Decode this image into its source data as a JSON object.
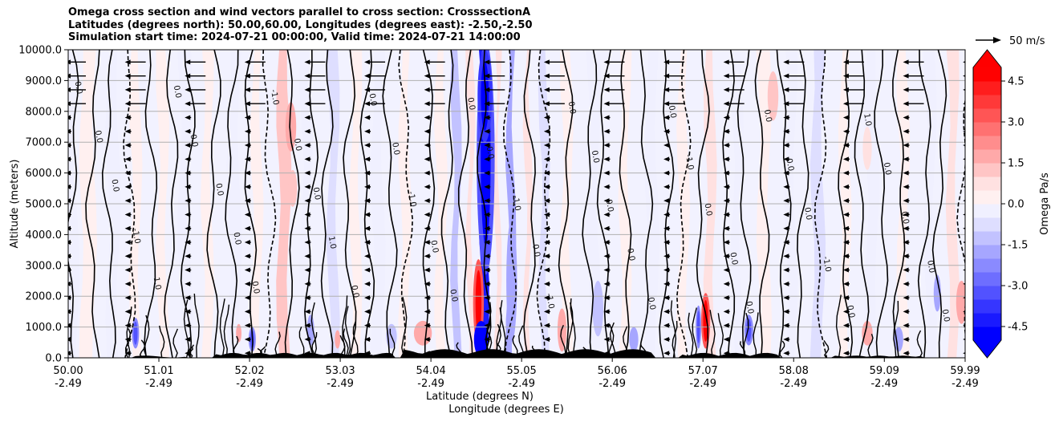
{
  "chart_data": {
    "type": "heatmap",
    "title_lines": [
      "Omega cross section and wind vectors parallel to cross section: CrosssectionA",
      "Latitudes (degrees north): 50.00,60.00, Longitudes (degrees east): -2.50,-2.50",
      "Simulation start time: 2024-07-21 00:00:00, Valid time: 2024-07-21 14:00:00"
    ],
    "ylabel": "Altitude (meters)",
    "xlabel_line1": "Latitude (degrees N)",
    "xlabel_line2": "Longitude (degrees E)",
    "xlim": [
      50.0,
      59.99
    ],
    "ylim": [
      0,
      10000
    ],
    "x_ticks": [
      {
        "lat": "50.00",
        "lon": "-2.49"
      },
      {
        "lat": "51.01",
        "lon": "-2.49"
      },
      {
        "lat": "52.02",
        "lon": "-2.49"
      },
      {
        "lat": "53.03",
        "lon": "-2.49"
      },
      {
        "lat": "54.04",
        "lon": "-2.49"
      },
      {
        "lat": "55.05",
        "lon": "-2.49"
      },
      {
        "lat": "56.06",
        "lon": "-2.49"
      },
      {
        "lat": "57.07",
        "lon": "-2.49"
      },
      {
        "lat": "58.08",
        "lon": "-2.49"
      },
      {
        "lat": "59.09",
        "lon": "-2.49"
      },
      {
        "lat": "59.99",
        "lon": "-2.49"
      }
    ],
    "y_ticks": [
      "0.0",
      "1000.0",
      "2000.0",
      "3000.0",
      "4000.0",
      "5000.0",
      "6000.0",
      "7000.0",
      "8000.0",
      "9000.0",
      "10000.0"
    ],
    "grid": true,
    "colorbar": {
      "label": "Omega Pa/s",
      "range": [
        -5,
        5
      ],
      "extend": "both",
      "ticks": [
        "-4.5",
        "-3.0",
        "-1.5",
        "0.0",
        "1.5",
        "3.0",
        "4.5"
      ],
      "negative_color": "#0000ff",
      "positive_color": "#ff0000"
    },
    "quiver_key": {
      "label": "50 m/s"
    },
    "contour_label": "0.0",
    "contour_label_neg": "-1.0",
    "contour_label_pos": "1.0",
    "wind_vector_direction": "southward",
    "wind_strong_band_altitude": [
      8000,
      10000
    ],
    "bands": [
      {
        "x": 50.05,
        "w": 0.1,
        "v": -0.4
      },
      {
        "x": 50.22,
        "w": 0.15,
        "v": 0.5
      },
      {
        "x": 50.5,
        "w": 0.12,
        "v": -0.3
      },
      {
        "x": 50.75,
        "w": 0.1,
        "v": 0.4
      },
      {
        "x": 51.05,
        "w": 0.1,
        "v": 0.3
      },
      {
        "x": 51.3,
        "w": 0.12,
        "v": -0.5
      },
      {
        "x": 51.55,
        "w": 0.1,
        "v": 0.4
      },
      {
        "x": 51.85,
        "w": 0.12,
        "v": -0.4
      },
      {
        "x": 52.1,
        "w": 0.1,
        "v": 0.3
      },
      {
        "x": 52.4,
        "w": 0.12,
        "v": 1.2
      },
      {
        "x": 52.65,
        "w": 0.1,
        "v": -0.3
      },
      {
        "x": 52.95,
        "w": 0.1,
        "v": -0.6
      },
      {
        "x": 53.2,
        "w": 0.1,
        "v": 0.4
      },
      {
        "x": 53.45,
        "w": 0.12,
        "v": -0.5
      },
      {
        "x": 53.75,
        "w": 0.1,
        "v": 0.5
      },
      {
        "x": 54.15,
        "w": 0.1,
        "v": 0.4
      },
      {
        "x": 54.32,
        "w": 0.08,
        "v": -1.2
      },
      {
        "x": 54.48,
        "w": 0.06,
        "v": 0.8
      },
      {
        "x": 54.63,
        "w": 0.07,
        "v": -4.5
      },
      {
        "x": 54.78,
        "w": 0.05,
        "v": 1.0
      },
      {
        "x": 54.93,
        "w": 0.07,
        "v": -2.0
      },
      {
        "x": 55.12,
        "w": 0.06,
        "v": 1.0
      },
      {
        "x": 55.3,
        "w": 0.08,
        "v": -0.8
      },
      {
        "x": 55.55,
        "w": 0.1,
        "v": 0.5
      },
      {
        "x": 55.85,
        "w": 0.12,
        "v": -0.3
      },
      {
        "x": 56.2,
        "w": 0.1,
        "v": 0.4
      },
      {
        "x": 56.5,
        "w": 0.12,
        "v": -0.5
      },
      {
        "x": 56.85,
        "w": 0.1,
        "v": 0.4
      },
      {
        "x": 57.15,
        "w": 0.1,
        "v": 0.6
      },
      {
        "x": 57.45,
        "w": 0.1,
        "v": -0.4
      },
      {
        "x": 57.75,
        "w": 0.12,
        "v": 0.5
      },
      {
        "x": 58.05,
        "w": 0.1,
        "v": -0.3
      },
      {
        "x": 58.35,
        "w": 0.12,
        "v": -0.6
      },
      {
        "x": 58.65,
        "w": 0.1,
        "v": 0.5
      },
      {
        "x": 58.95,
        "w": 0.12,
        "v": -0.4
      },
      {
        "x": 59.3,
        "w": 0.1,
        "v": 0.4
      },
      {
        "x": 59.6,
        "w": 0.1,
        "v": -0.5
      },
      {
        "x": 59.85,
        "w": 0.1,
        "v": 0.8
      }
    ],
    "blobs": [
      {
        "x": 54.65,
        "y": 6500,
        "rx": 0.1,
        "ry": 3800,
        "v": -3.5
      },
      {
        "x": 54.64,
        "y": 8500,
        "rx": 0.08,
        "ry": 1500,
        "v": -4.0
      },
      {
        "x": 54.57,
        "y": 1800,
        "rx": 0.06,
        "ry": 1400,
        "v": 3.5
      },
      {
        "x": 54.6,
        "y": 600,
        "rx": 0.08,
        "ry": 600,
        "v": -5.0
      },
      {
        "x": 54.94,
        "y": 2500,
        "rx": 0.06,
        "ry": 2000,
        "v": -2.0
      },
      {
        "x": 52.48,
        "y": 7500,
        "rx": 0.06,
        "ry": 800,
        "v": 1.8
      },
      {
        "x": 52.5,
        "y": 5500,
        "rx": 0.05,
        "ry": 600,
        "v": 1.2
      },
      {
        "x": 53.95,
        "y": 800,
        "rx": 0.1,
        "ry": 400,
        "v": 2.0
      },
      {
        "x": 53.6,
        "y": 700,
        "rx": 0.06,
        "ry": 400,
        "v": -1.5
      },
      {
        "x": 50.75,
        "y": 800,
        "rx": 0.04,
        "ry": 500,
        "v": -2.5
      },
      {
        "x": 51.9,
        "y": 800,
        "rx": 0.03,
        "ry": 300,
        "v": 2.0
      },
      {
        "x": 52.05,
        "y": 600,
        "rx": 0.04,
        "ry": 400,
        "v": -2.5
      },
      {
        "x": 52.7,
        "y": 900,
        "rx": 0.04,
        "ry": 500,
        "v": -2.0
      },
      {
        "x": 53.0,
        "y": 600,
        "rx": 0.03,
        "ry": 300,
        "v": 2.0
      },
      {
        "x": 55.5,
        "y": 900,
        "rx": 0.05,
        "ry": 700,
        "v": 2.0
      },
      {
        "x": 55.9,
        "y": 1600,
        "rx": 0.06,
        "ry": 900,
        "v": -1.5
      },
      {
        "x": 56.3,
        "y": 600,
        "rx": 0.05,
        "ry": 400,
        "v": -2.0
      },
      {
        "x": 57.1,
        "y": 1200,
        "rx": 0.05,
        "ry": 900,
        "v": 3.5
      },
      {
        "x": 57.02,
        "y": 1000,
        "rx": 0.03,
        "ry": 700,
        "v": -2.5
      },
      {
        "x": 57.58,
        "y": 900,
        "rx": 0.05,
        "ry": 500,
        "v": -2.5
      },
      {
        "x": 58.9,
        "y": 800,
        "rx": 0.06,
        "ry": 400,
        "v": 2.0
      },
      {
        "x": 59.25,
        "y": 600,
        "rx": 0.05,
        "ry": 400,
        "v": -2.0
      },
      {
        "x": 59.95,
        "y": 1800,
        "rx": 0.06,
        "ry": 700,
        "v": 2.0
      },
      {
        "x": 59.68,
        "y": 2100,
        "rx": 0.04,
        "ry": 600,
        "v": -1.8
      },
      {
        "x": 57.85,
        "y": 8500,
        "rx": 0.06,
        "ry": 800,
        "v": 1.2
      },
      {
        "x": 58.9,
        "y": 6800,
        "rx": 0.05,
        "ry": 700,
        "v": 1.0
      }
    ]
  }
}
